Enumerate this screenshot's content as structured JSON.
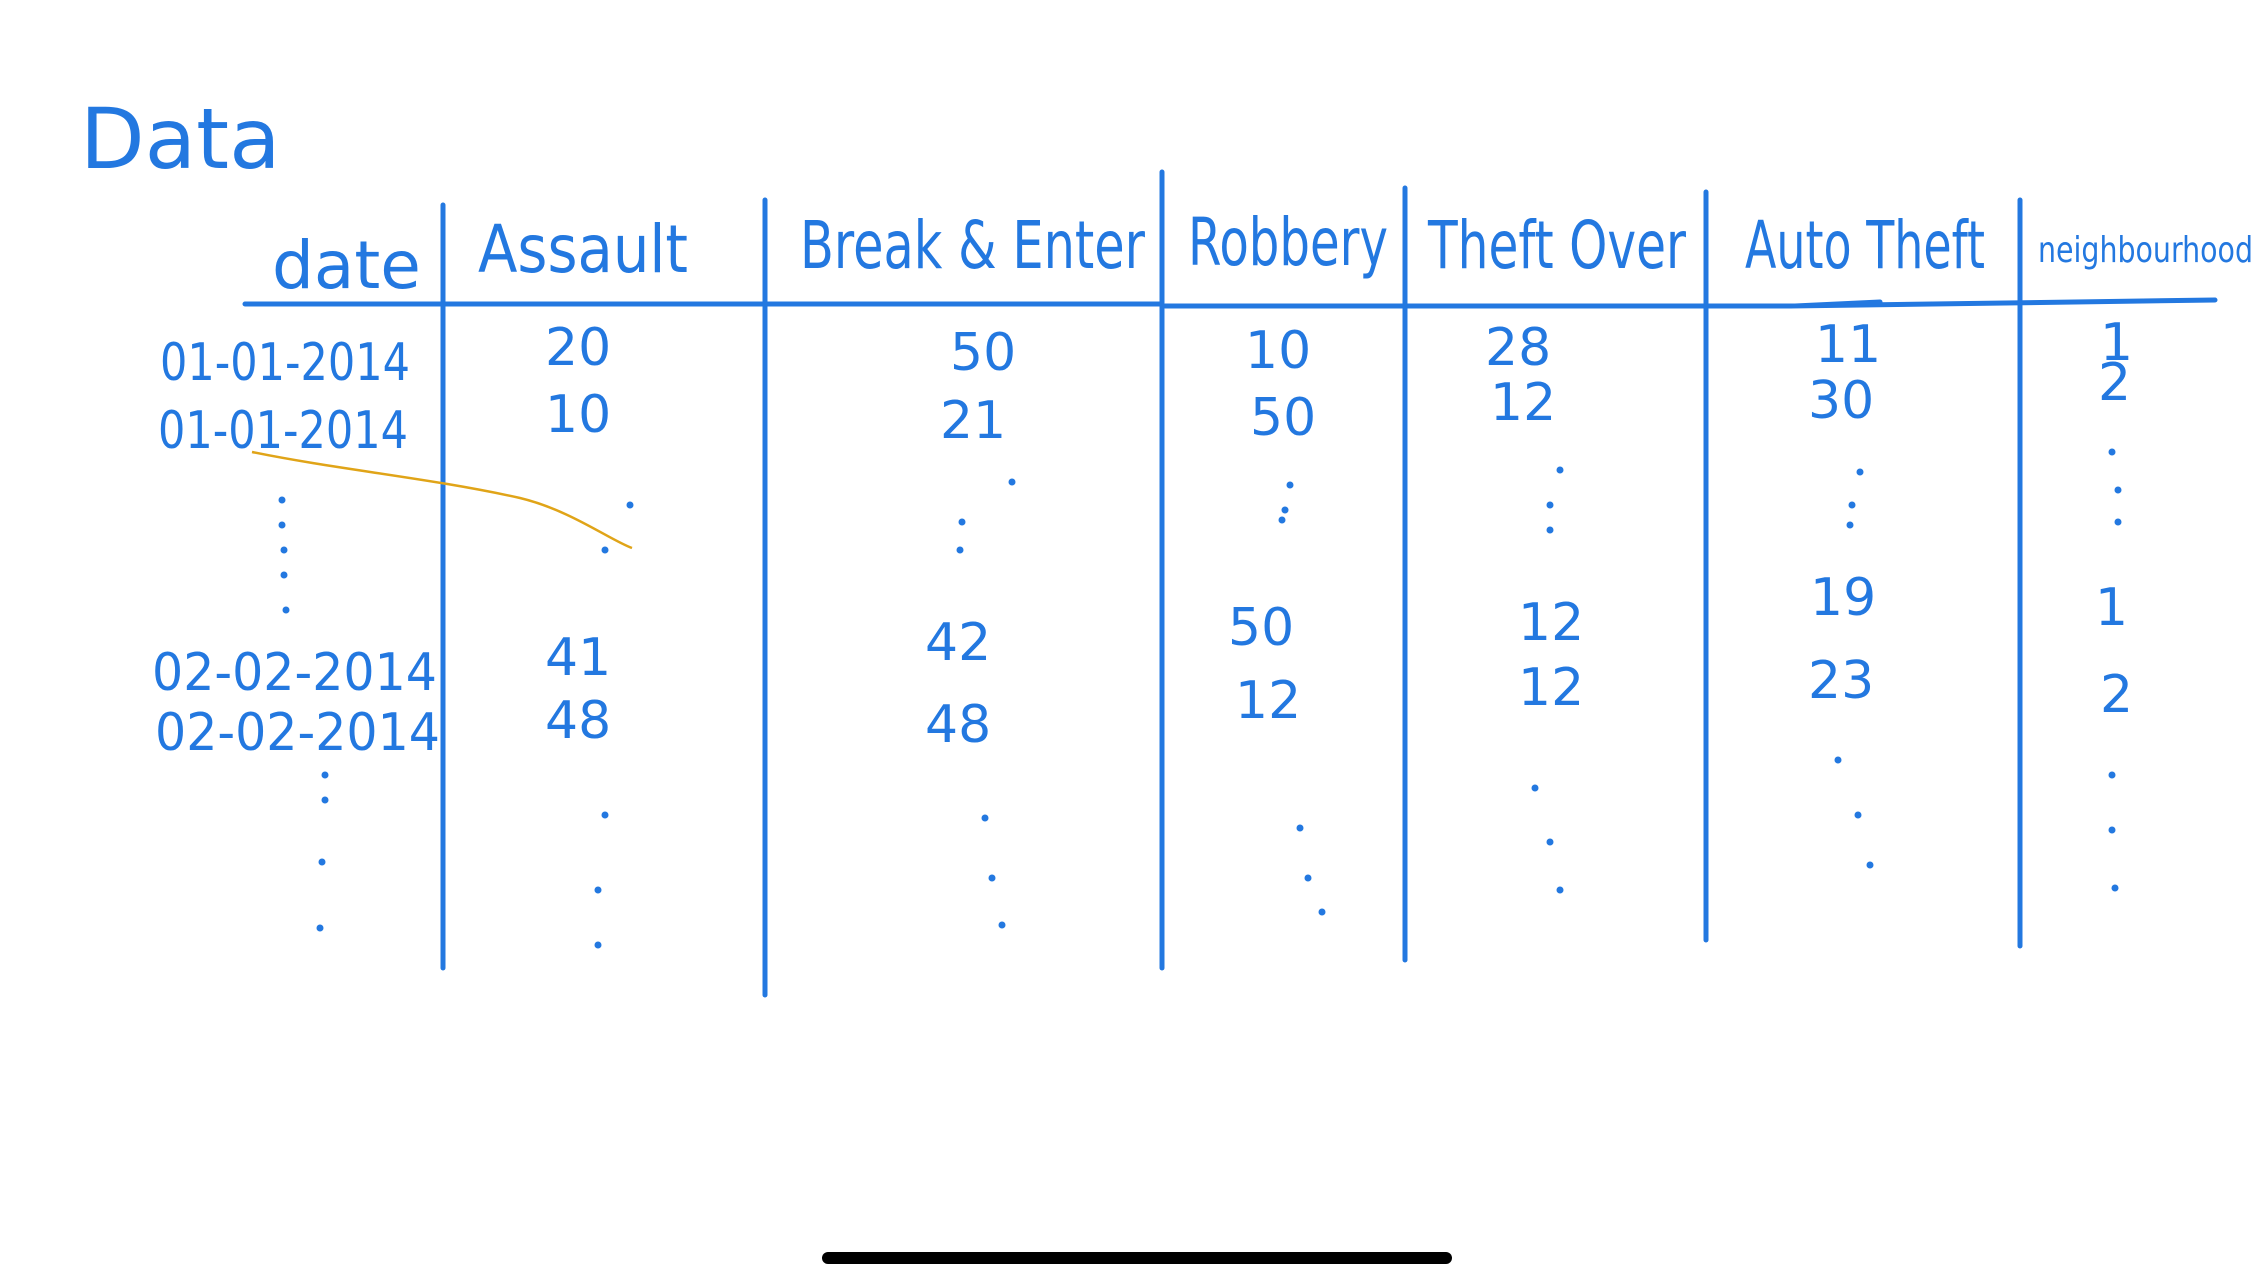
{
  "title": "Data",
  "table": {
    "headers": [
      "date",
      "Assault",
      "Break & Enter",
      "Robbery",
      "Theft Over",
      "Auto Theft",
      "neighbourhood"
    ],
    "rows": [
      [
        "01-01-2014",
        "20",
        "50",
        "10",
        "28",
        "11",
        "1"
      ],
      [
        "01-01-2014",
        "10",
        "21",
        "50",
        "12",
        "30",
        "2"
      ],
      [
        "⋮",
        "⋮",
        "⋮",
        "⋮",
        "⋮",
        "⋮",
        "⋮"
      ],
      [
        "02-02-2014",
        "41",
        "42",
        "50",
        "12",
        "19",
        "1"
      ],
      [
        "02-02-2014",
        "48",
        "48",
        "12",
        "12",
        "23",
        "2"
      ],
      [
        "⋮",
        "⋮",
        "⋮",
        "⋮",
        "⋮",
        "⋮",
        "⋮"
      ]
    ]
  },
  "ink_color": "#2378e0",
  "stray_stroke_color": "#e0a418"
}
